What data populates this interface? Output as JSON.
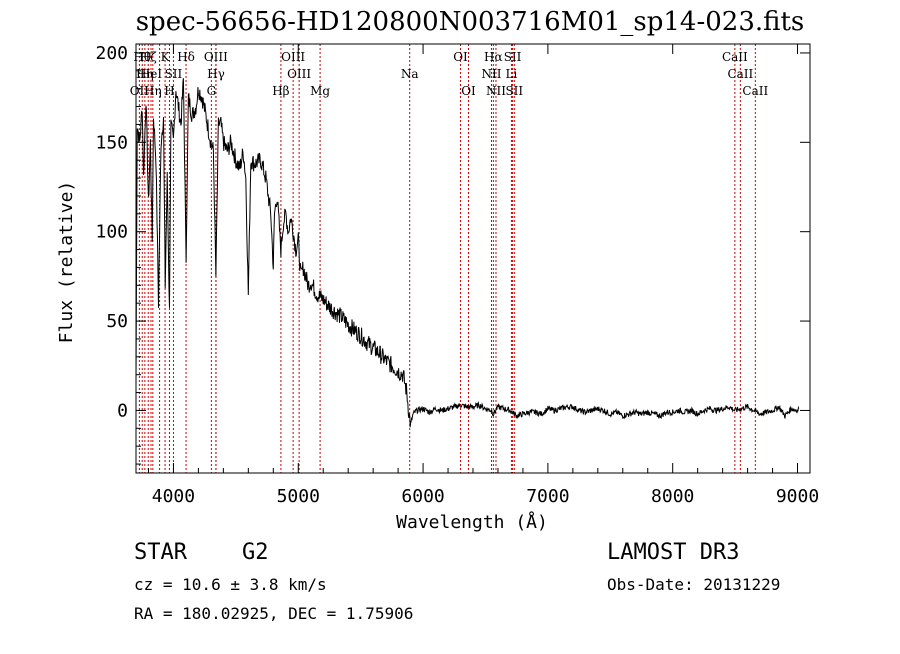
{
  "chart_data": {
    "type": "line",
    "title": "spec-56656-HD120800N003716M01_sp14-023.fits",
    "xlabel": "Wavelength (Å)",
    "ylabel": "Flux (relative)",
    "xlim": [
      3700,
      9100
    ],
    "ylim": [
      -35,
      205
    ],
    "xticks": [
      4000,
      5000,
      6000,
      7000,
      8000,
      9000
    ],
    "yticks": [
      0,
      50,
      100,
      150,
      200
    ],
    "xtick_labels": [
      "4000",
      "5000",
      "6000",
      "7000",
      "8000",
      "9000"
    ],
    "ytick_labels": [
      "0",
      "50",
      "100",
      "150",
      "200"
    ],
    "series": [
      {
        "name": "spectrum",
        "points": [
          [
            3700,
            15
          ],
          [
            3710,
            160
          ],
          [
            3730,
            150
          ],
          [
            3750,
            170
          ],
          [
            3760,
            130
          ],
          [
            3780,
            175
          ],
          [
            3800,
            115
          ],
          [
            3815,
            150
          ],
          [
            3830,
            95
          ],
          [
            3840,
            165
          ],
          [
            3860,
            140
          ],
          [
            3880,
            60
          ],
          [
            3900,
            150
          ],
          [
            3920,
            165
          ],
          [
            3934,
            70
          ],
          [
            3950,
            130
          ],
          [
            3968,
            55
          ],
          [
            3980,
            160
          ],
          [
            4000,
            150
          ],
          [
            4020,
            180
          ],
          [
            4040,
            170
          ],
          [
            4060,
            160
          ],
          [
            4080,
            185
          ],
          [
            4101,
            85
          ],
          [
            4120,
            175
          ],
          [
            4150,
            165
          ],
          [
            4180,
            170
          ],
          [
            4200,
            180
          ],
          [
            4230,
            175
          ],
          [
            4260,
            165
          ],
          [
            4300,
            150
          ],
          [
            4320,
            145
          ],
          [
            4340,
            75
          ],
          [
            4360,
            160
          ],
          [
            4380,
            160
          ],
          [
            4400,
            150
          ],
          [
            4430,
            145
          ],
          [
            4460,
            150
          ],
          [
            4500,
            140
          ],
          [
            4530,
            135
          ],
          [
            4560,
            145
          ],
          [
            4580,
            130
          ],
          [
            4600,
            65
          ],
          [
            4620,
            140
          ],
          [
            4650,
            138
          ],
          [
            4700,
            140
          ],
          [
            4740,
            130
          ],
          [
            4780,
            110
          ],
          [
            4800,
            80
          ],
          [
            4810,
            110
          ],
          [
            4830,
            120
          ],
          [
            4861,
            90
          ],
          [
            4880,
            105
          ],
          [
            4900,
            110
          ],
          [
            4920,
            100
          ],
          [
            4940,
            108
          ],
          [
            4960,
            100
          ],
          [
            4980,
            90
          ],
          [
            5000,
            95
          ],
          [
            5020,
            75
          ],
          [
            5040,
            80
          ],
          [
            5060,
            75
          ],
          [
            5080,
            70
          ],
          [
            5100,
            72
          ],
          [
            5150,
            65
          ],
          [
            5200,
            62
          ],
          [
            5250,
            58
          ],
          [
            5300,
            55
          ],
          [
            5350,
            52
          ],
          [
            5400,
            48
          ],
          [
            5450,
            45
          ],
          [
            5500,
            42
          ],
          [
            5550,
            38
          ],
          [
            5600,
            35
          ],
          [
            5650,
            32
          ],
          [
            5700,
            28
          ],
          [
            5750,
            25
          ],
          [
            5800,
            22
          ],
          [
            5840,
            20
          ],
          [
            5870,
            10
          ],
          [
            5890,
            -3
          ],
          [
            5900,
            -8
          ],
          [
            5920,
            -2
          ],
          [
            5950,
            0
          ],
          [
            6000,
            1
          ],
          [
            6050,
            -1
          ],
          [
            6100,
            1
          ],
          [
            6150,
            0
          ],
          [
            6200,
            1
          ],
          [
            6250,
            2
          ],
          [
            6300,
            3
          ],
          [
            6350,
            2
          ],
          [
            6400,
            2
          ],
          [
            6450,
            3
          ],
          [
            6500,
            1
          ],
          [
            6550,
            0
          ],
          [
            6563,
            -2
          ],
          [
            6600,
            2
          ],
          [
            6650,
            1
          ],
          [
            6700,
            0
          ],
          [
            6750,
            -3
          ],
          [
            6800,
            -2
          ],
          [
            6850,
            -1
          ],
          [
            6900,
            -1
          ],
          [
            6950,
            -2
          ],
          [
            7000,
            1
          ],
          [
            7050,
            0
          ],
          [
            7100,
            1
          ],
          [
            7150,
            2
          ],
          [
            7200,
            2
          ],
          [
            7250,
            0
          ],
          [
            7300,
            -1
          ],
          [
            7350,
            0
          ],
          [
            7400,
            1
          ],
          [
            7450,
            0
          ],
          [
            7500,
            -2
          ],
          [
            7550,
            -1
          ],
          [
            7600,
            -3
          ],
          [
            7650,
            -2
          ],
          [
            7700,
            -1
          ],
          [
            7750,
            -2
          ],
          [
            7800,
            -1
          ],
          [
            7850,
            -2
          ],
          [
            7900,
            -3
          ],
          [
            7950,
            -1
          ],
          [
            8000,
            -1
          ],
          [
            8050,
            0
          ],
          [
            8100,
            -1
          ],
          [
            8150,
            0
          ],
          [
            8200,
            -2
          ],
          [
            8250,
            0
          ],
          [
            8300,
            1
          ],
          [
            8350,
            0
          ],
          [
            8400,
            1
          ],
          [
            8450,
            2
          ],
          [
            8500,
            0
          ],
          [
            8550,
            1
          ],
          [
            8600,
            2
          ],
          [
            8650,
            0
          ],
          [
            8700,
            -2
          ],
          [
            8750,
            -1
          ],
          [
            8800,
            0
          ],
          [
            8850,
            2
          ],
          [
            8900,
            -3
          ],
          [
            8950,
            1
          ],
          [
            9000,
            0
          ],
          [
            9010,
            1
          ]
        ]
      }
    ],
    "lines": [
      {
        "wavelength": 3727,
        "label": "OII",
        "row": 3
      },
      {
        "wavelength": 3750,
        "label": "Hθ",
        "row": 1
      },
      {
        "wavelength": 3771,
        "label": "Hη",
        "row": 2
      },
      {
        "wavelength": 3798,
        "label": "Hζ",
        "row": 1
      },
      {
        "wavelength": 3820,
        "label": "HeI",
        "row": 2
      },
      {
        "wavelength": 3835,
        "label": "Hη",
        "row": 3
      },
      {
        "wavelength": 3889,
        "label": "",
        "row": 0
      },
      {
        "wavelength": 3933,
        "label": "K",
        "row": 1
      },
      {
        "wavelength": 3968,
        "label": "H",
        "row": 3
      },
      {
        "wavelength": 4000,
        "label": "SII",
        "row": 2
      },
      {
        "wavelength": 4101,
        "label": "Hδ",
        "row": 1
      },
      {
        "wavelength": 4340,
        "label": "OIII",
        "row": 1
      },
      {
        "wavelength": 4341,
        "label": "Hγ",
        "row": 2
      },
      {
        "wavelength": 4304,
        "label": "G",
        "row": 3
      },
      {
        "wavelength": 4861,
        "label": "Hβ",
        "row": 3
      },
      {
        "wavelength": 4959,
        "label": "OIII",
        "row": 1
      },
      {
        "wavelength": 5007,
        "label": "OIII",
        "row": 2
      },
      {
        "wavelength": 5175,
        "label": "Mg",
        "row": 3
      },
      {
        "wavelength": 5893,
        "label": "Na",
        "row": 2
      },
      {
        "wavelength": 6300,
        "label": "OI",
        "row": 1
      },
      {
        "wavelength": 6364,
        "label": "OI",
        "row": 3
      },
      {
        "wavelength": 6548,
        "label": "NII",
        "row": 2
      },
      {
        "wavelength": 6563,
        "label": "Hα",
        "row": 1
      },
      {
        "wavelength": 6584,
        "label": "NII",
        "row": 3
      },
      {
        "wavelength": 6717,
        "label": "SII",
        "row": 1
      },
      {
        "wavelength": 6708,
        "label": "Li",
        "row": 2
      },
      {
        "wavelength": 6731,
        "label": "SII",
        "row": 3
      },
      {
        "wavelength": 8498,
        "label": "CaII",
        "row": 1
      },
      {
        "wavelength": 8542,
        "label": "CaII",
        "row": 2
      },
      {
        "wavelength": 8662,
        "label": "CaII",
        "row": 3
      }
    ]
  },
  "info": {
    "object_class": "STAR",
    "subclass": "G2",
    "survey": "LAMOST DR3",
    "cz": "cz = 10.6 ± 3.8 km/s",
    "obs_date": "Obs-Date: 20131229",
    "radec": "RA = 180.02925, DEC =    1.75906"
  },
  "colors": {
    "spectrum": "#000000",
    "line_marker": "#cc0000",
    "axes": "#000000"
  }
}
